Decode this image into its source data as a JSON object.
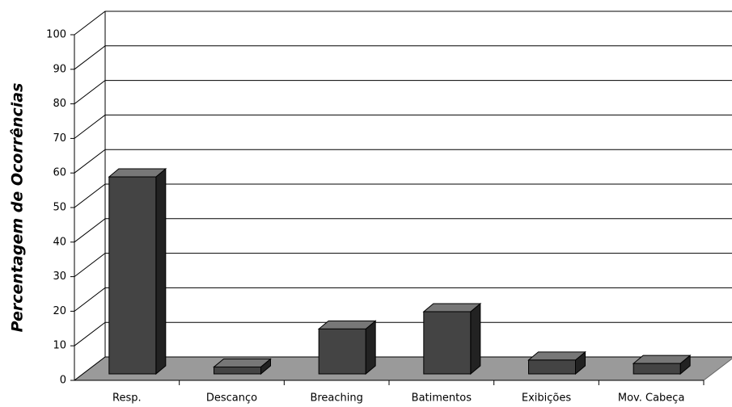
{
  "chart_data": {
    "type": "bar3d",
    "y_label": "Percentagem de Ocorrências",
    "categories": [
      "Resp.",
      "Descanço",
      "Breaching",
      "Batimentos",
      "Exibições",
      "Mov. Cabeça"
    ],
    "values": [
      57,
      2,
      13,
      18,
      4,
      3
    ],
    "color": "#444444",
    "ylim": [
      0,
      100
    ],
    "yticks": [
      0,
      10,
      20,
      30,
      40,
      50,
      60,
      70,
      80,
      90,
      100
    ],
    "grid": true
  }
}
